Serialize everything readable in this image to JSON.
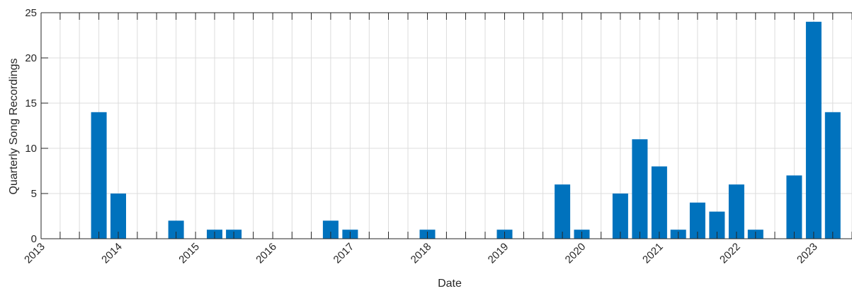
{
  "chart_data": {
    "type": "bar",
    "xlabel": "Date",
    "ylabel": "Quarterly Song Recordings",
    "x_axis_type": "date",
    "x_ticks": [
      "2013",
      "2014",
      "2015",
      "2016",
      "2017",
      "2018",
      "2019",
      "2020",
      "2021",
      "2022",
      "2023"
    ],
    "y_ticks": [
      0,
      5,
      10,
      15,
      20,
      25
    ],
    "ylim": [
      0,
      25
    ],
    "xlim": [
      "2013-01-01",
      "2023-07-01"
    ],
    "grid": true,
    "bar_color": "#0072BD",
    "categories": [
      "2013-10-01",
      "2014-01-01",
      "2014-10-01",
      "2015-04-01",
      "2015-07-01",
      "2016-10-01",
      "2017-01-01",
      "2018-01-01",
      "2019-01-01",
      "2019-10-01",
      "2020-01-01",
      "2020-07-01",
      "2020-10-01",
      "2021-01-01",
      "2021-04-01",
      "2021-07-01",
      "2021-10-01",
      "2022-01-01",
      "2022-04-01",
      "2022-10-01",
      "2023-01-01",
      "2023-04-01"
    ],
    "values": [
      14,
      5,
      2,
      1,
      1,
      2,
      1,
      1,
      1,
      6,
      1,
      5,
      11,
      8,
      1,
      4,
      3,
      6,
      1,
      7,
      24,
      14
    ]
  }
}
